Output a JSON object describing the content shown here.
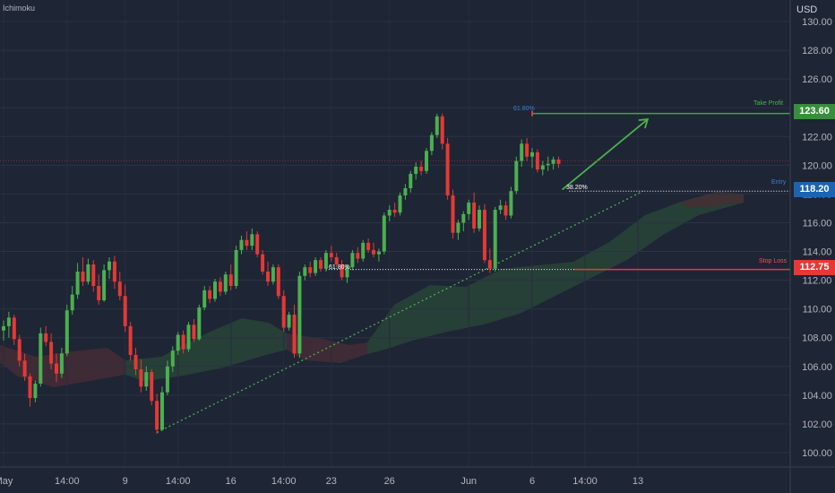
{
  "indicator": "Ichimoku",
  "currency": "USD",
  "colors": {
    "background": "#1e2535",
    "axis_text": "#b2b5be",
    "bull": "#4caf50",
    "bear": "#e53935",
    "target": "#43a047",
    "entry": "#1e63b0",
    "stop": "#e53935",
    "fib": "#ffffff",
    "cloud_bull": "#2a4838",
    "cloud_bear": "#4a2d35"
  },
  "annotations": {
    "take_profit_label": "Take Profit",
    "entry_label": "Entry",
    "stop_loss_label": "Stop Loss",
    "fib_top": "61.80%",
    "fib_entry": "38.20%",
    "fib_stop": "61.80%"
  },
  "chart_data": {
    "type": "candlestick",
    "title": "",
    "y_ticks": [
      "100.00",
      "102.00",
      "104.00",
      "106.00",
      "108.00",
      "110.00",
      "112.00",
      "114.00",
      "116.00",
      "118.00",
      "120.00",
      "122.00",
      "124.00",
      "126.00",
      "128.00",
      "130.00"
    ],
    "ylim": [
      99,
      131.5
    ],
    "x_ticks": [
      {
        "label": "May",
        "i": 0
      },
      {
        "label": "14:00",
        "i": 12
      },
      {
        "label": "9",
        "i": 23
      },
      {
        "label": "14:00",
        "i": 33
      },
      {
        "label": "16",
        "i": 43
      },
      {
        "label": "14:00",
        "i": 53
      },
      {
        "label": "23",
        "i": 62
      },
      {
        "label": "26",
        "i": 73
      },
      {
        "label": "Jun",
        "i": 88
      },
      {
        "label": "6",
        "i": 100
      },
      {
        "label": "14:00",
        "i": 110
      },
      {
        "label": "13",
        "i": 120
      }
    ],
    "levels": {
      "take_profit": 123.6,
      "entry": 118.2,
      "stop_loss": 112.75,
      "fib_61_8": 112.75,
      "current": 120.3
    },
    "badges": {
      "take_profit": "123.60",
      "entry": "118.20",
      "stop_loss": "112.75"
    },
    "trendline": {
      "from": {
        "i": 29,
        "y": 101.4
      },
      "to": {
        "i": 121,
        "y": 118.2
      }
    },
    "arrow": {
      "from": {
        "i": 105,
        "y": 118.3
      },
      "to": {
        "i": 121,
        "y": 123.2
      }
    },
    "candles": [
      [
        108.5,
        109.2,
        107.8,
        108.8
      ],
      [
        108.8,
        109.8,
        108.0,
        109.4
      ],
      [
        109.4,
        109.6,
        107.5,
        107.9
      ],
      [
        107.9,
        108.2,
        106.0,
        106.4
      ],
      [
        106.4,
        106.9,
        105.0,
        105.3
      ],
      [
        105.3,
        105.5,
        103.2,
        103.8
      ],
      [
        103.8,
        105.0,
        103.5,
        104.8
      ],
      [
        104.8,
        108.7,
        104.6,
        108.3
      ],
      [
        108.3,
        108.8,
        107.4,
        107.7
      ],
      [
        107.7,
        108.3,
        105.8,
        106.2
      ],
      [
        106.2,
        106.9,
        104.9,
        105.5
      ],
      [
        105.5,
        107.3,
        105.2,
        106.9
      ],
      [
        106.9,
        110.3,
        106.7,
        109.9
      ],
      [
        109.9,
        111.6,
        109.6,
        111.0
      ],
      [
        111.0,
        113.2,
        110.7,
        112.6
      ],
      [
        112.6,
        113.6,
        111.6,
        111.9
      ],
      [
        111.9,
        113.5,
        111.7,
        113.1
      ],
      [
        113.1,
        113.4,
        111.2,
        111.6
      ],
      [
        111.6,
        112.4,
        110.3,
        110.6
      ],
      [
        110.6,
        113.1,
        110.5,
        112.7
      ],
      [
        112.7,
        113.6,
        112.1,
        113.3
      ],
      [
        113.3,
        113.7,
        111.4,
        111.9
      ],
      [
        111.9,
        112.6,
        110.6,
        110.9
      ],
      [
        110.9,
        111.7,
        108.4,
        108.8
      ],
      [
        108.8,
        109.1,
        106.4,
        106.8
      ],
      [
        106.8,
        107.3,
        105.4,
        105.8
      ],
      [
        105.8,
        106.5,
        104.2,
        104.6
      ],
      [
        104.6,
        106.0,
        104.3,
        105.6
      ],
      [
        105.6,
        105.8,
        103.3,
        103.6
      ],
      [
        103.6,
        104.1,
        101.3,
        101.6
      ],
      [
        101.6,
        104.6,
        101.5,
        104.2
      ],
      [
        104.2,
        106.4,
        104.0,
        106.0
      ],
      [
        106.0,
        107.4,
        105.6,
        107.1
      ],
      [
        107.1,
        108.4,
        106.8,
        108.2
      ],
      [
        108.2,
        108.5,
        106.9,
        107.2
      ],
      [
        107.2,
        109.1,
        107.0,
        108.9
      ],
      [
        108.9,
        109.3,
        107.7,
        107.9
      ],
      [
        107.9,
        110.3,
        107.8,
        110.1
      ],
      [
        110.1,
        111.6,
        109.9,
        111.3
      ],
      [
        111.3,
        111.6,
        110.4,
        110.7
      ],
      [
        110.7,
        112.1,
        110.5,
        111.9
      ],
      [
        111.9,
        112.2,
        110.9,
        111.2
      ],
      [
        111.2,
        112.6,
        111.0,
        112.4
      ],
      [
        112.4,
        113.1,
        111.3,
        111.6
      ],
      [
        111.6,
        114.4,
        111.4,
        114.1
      ],
      [
        114.1,
        115.1,
        113.8,
        114.8
      ],
      [
        114.8,
        115.4,
        114.1,
        114.4
      ],
      [
        114.4,
        115.6,
        114.1,
        115.2
      ],
      [
        115.2,
        115.4,
        113.6,
        113.8
      ],
      [
        113.8,
        114.1,
        112.4,
        112.6
      ],
      [
        112.6,
        113.3,
        111.6,
        111.9
      ],
      [
        111.9,
        113.1,
        111.7,
        112.9
      ],
      [
        112.9,
        113.1,
        110.7,
        110.9
      ],
      [
        110.9,
        111.3,
        108.4,
        108.7
      ],
      [
        108.7,
        109.8,
        108.5,
        109.6
      ],
      [
        109.6,
        110.3,
        106.6,
        106.9
      ],
      [
        106.9,
        112.6,
        106.6,
        112.3
      ],
      [
        112.3,
        113.1,
        112.0,
        112.9
      ],
      [
        112.9,
        113.3,
        112.2,
        112.5
      ],
      [
        112.5,
        113.6,
        112.3,
        113.4
      ],
      [
        113.4,
        113.6,
        112.6,
        112.8
      ],
      [
        112.8,
        114.1,
        112.6,
        113.9
      ],
      [
        113.9,
        114.4,
        113.3,
        113.6
      ],
      [
        113.6,
        113.9,
        112.9,
        113.1
      ],
      [
        113.1,
        113.4,
        112.0,
        112.2
      ],
      [
        112.2,
        113.1,
        111.8,
        112.9
      ],
      [
        112.9,
        114.1,
        112.7,
        113.9
      ],
      [
        113.9,
        114.3,
        113.2,
        113.5
      ],
      [
        113.5,
        114.8,
        113.3,
        114.6
      ],
      [
        114.6,
        114.9,
        113.9,
        114.1
      ],
      [
        114.1,
        114.6,
        113.6,
        113.8
      ],
      [
        113.8,
        114.2,
        113.3,
        114.0
      ],
      [
        114.0,
        116.7,
        113.8,
        116.5
      ],
      [
        116.5,
        117.2,
        116.1,
        116.9
      ],
      [
        116.9,
        117.4,
        116.4,
        116.7
      ],
      [
        116.7,
        118.1,
        116.5,
        117.9
      ],
      [
        117.9,
        118.7,
        117.6,
        118.4
      ],
      [
        118.4,
        119.6,
        118.1,
        119.4
      ],
      [
        119.4,
        120.2,
        119.0,
        119.9
      ],
      [
        119.9,
        120.3,
        119.3,
        119.6
      ],
      [
        119.6,
        121.2,
        119.4,
        121.0
      ],
      [
        121.0,
        122.3,
        120.7,
        122.1
      ],
      [
        122.1,
        123.6,
        121.9,
        123.4
      ],
      [
        123.4,
        123.6,
        121.1,
        121.5
      ],
      [
        121.5,
        121.9,
        117.6,
        117.9
      ],
      [
        117.9,
        118.3,
        114.9,
        115.3
      ],
      [
        115.3,
        116.2,
        114.8,
        116.0
      ],
      [
        116.0,
        116.8,
        115.4,
        116.6
      ],
      [
        116.6,
        117.6,
        116.2,
        117.4
      ],
      [
        117.4,
        118.1,
        115.3,
        115.6
      ],
      [
        115.6,
        117.2,
        115.4,
        116.9
      ],
      [
        116.9,
        117.3,
        113.2,
        113.4
      ],
      [
        113.4,
        114.2,
        112.5,
        112.8
      ],
      [
        112.8,
        117.1,
        112.6,
        116.9
      ],
      [
        116.9,
        117.6,
        116.6,
        117.2
      ],
      [
        117.2,
        117.5,
        116.2,
        116.5
      ],
      [
        116.5,
        118.5,
        116.3,
        118.2
      ],
      [
        118.2,
        120.6,
        118.0,
        120.3
      ],
      [
        120.3,
        121.8,
        119.9,
        121.5
      ],
      [
        121.5,
        121.9,
        120.3,
        120.6
      ],
      [
        120.6,
        121.2,
        119.8,
        120.9
      ],
      [
        120.9,
        121.1,
        119.5,
        119.7
      ],
      [
        119.7,
        120.3,
        119.3,
        120.0
      ],
      [
        120.0,
        120.6,
        119.6,
        120.1
      ],
      [
        120.1,
        120.6,
        119.7,
        120.4
      ],
      [
        120.4,
        120.6,
        119.8,
        120.1
      ]
    ]
  }
}
